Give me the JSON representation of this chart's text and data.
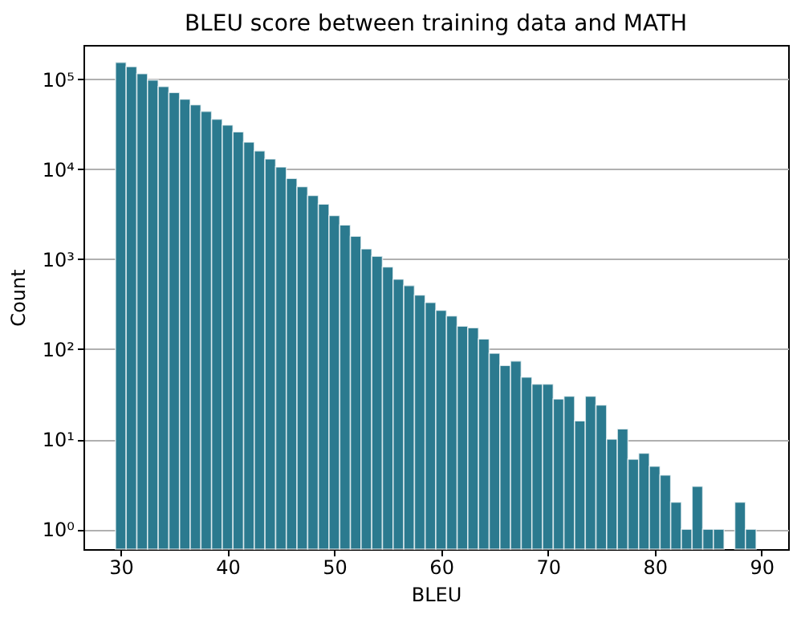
{
  "chart_data": {
    "type": "histogram",
    "title": "BLEU score between training data and MATH",
    "xlabel": "BLEU",
    "ylabel": "Count",
    "bins": [
      29.5,
      30.5,
      31.5,
      32.5,
      33.5,
      34.5,
      35.5,
      36.5,
      37.5,
      38.5,
      39.5,
      40.5,
      41.5,
      42.5,
      43.5,
      44.5,
      45.5,
      46.5,
      47.5,
      48.5,
      49.5,
      50.5,
      51.5,
      52.5,
      53.5,
      54.5,
      55.5,
      56.5,
      57.5,
      58.5,
      59.5,
      60.5,
      61.5,
      62.5,
      63.5,
      64.5,
      65.5,
      66.5,
      67.5,
      68.5,
      69.5,
      70.5,
      71.5,
      72.5,
      73.5,
      74.5,
      75.5,
      76.5,
      77.5,
      78.5,
      79.5,
      80.5,
      81.5,
      82.5,
      83.5,
      84.5,
      85.5,
      86.5,
      87.5,
      88.5,
      89.5
    ],
    "values": [
      154000,
      138000,
      115000,
      98000,
      83000,
      71000,
      60000,
      52000,
      44000,
      36000,
      31000,
      26000,
      20000,
      16000,
      13000,
      10600,
      7900,
      6400,
      5100,
      4100,
      3050,
      2400,
      1800,
      1300,
      1080,
      820,
      600,
      510,
      400,
      330,
      270,
      234,
      180,
      173,
      130,
      90,
      66,
      74,
      49,
      41,
      41,
      28,
      30,
      16,
      30,
      24,
      10,
      13,
      6,
      7,
      5,
      4,
      2,
      1,
      3,
      1,
      1,
      null,
      2,
      1
    ],
    "color": "#2b7a8f",
    "log": "y",
    "grid": "y",
    "xlim": [
      26.5,
      92.5
    ],
    "xticks": [
      30,
      40,
      50,
      60,
      70,
      80,
      90
    ],
    "ylim": [
      0.6,
      240000
    ],
    "yticks": [
      {
        "value": 1,
        "label": "10⁰"
      },
      {
        "value": 10,
        "label": "10¹"
      },
      {
        "value": 100,
        "label": "10²"
      },
      {
        "value": 1000,
        "label": "10³"
      },
      {
        "value": 10000,
        "label": "10⁴"
      },
      {
        "value": 100000,
        "label": "10⁵"
      }
    ]
  }
}
